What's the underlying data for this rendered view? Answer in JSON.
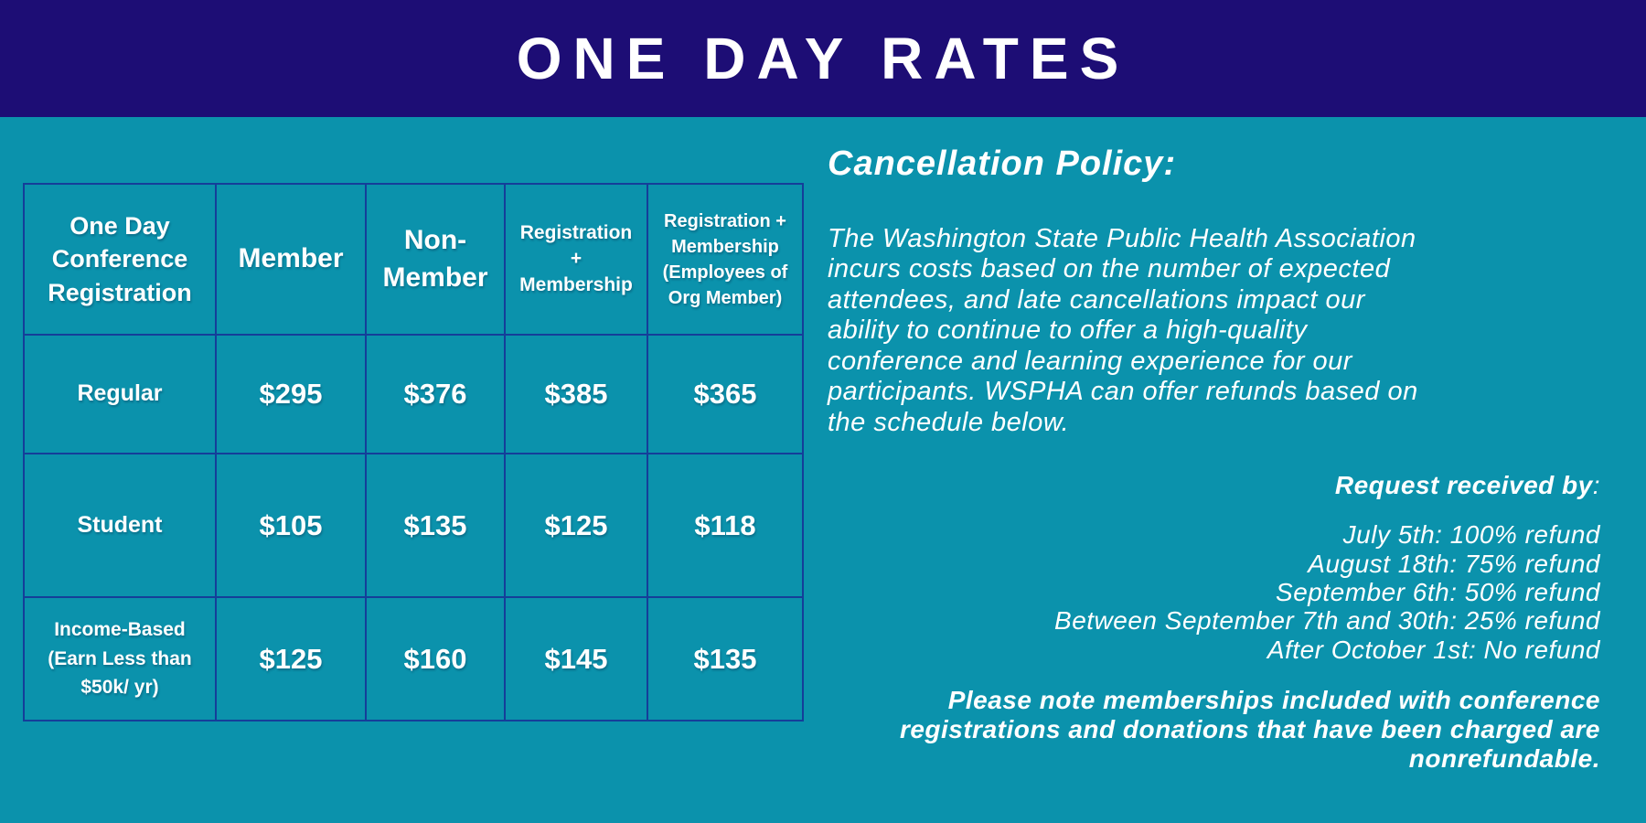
{
  "colors": {
    "header_background": "#1d0d75",
    "page_background": "#0b92ac",
    "table_border": "#153e99",
    "text": "#ffffff"
  },
  "header": {
    "title": "ONE DAY RATES"
  },
  "table": {
    "columns": [
      "One Day Conference Registration",
      "Member",
      "Non-Member",
      "Registration + Membership",
      "Registration + Membership (Employees of Org Member)"
    ],
    "rows": [
      {
        "label": "Regular",
        "values": [
          "$295",
          "$376",
          "$385",
          "$365"
        ]
      },
      {
        "label": "Student",
        "values": [
          "$105",
          "$135",
          "$125",
          "$118"
        ]
      },
      {
        "label": "Income-Based (Earn Less than $50k/ yr)",
        "values": [
          "$125",
          "$160",
          "$145",
          "$135"
        ]
      }
    ]
  },
  "policy": {
    "heading": "Cancellation Policy:",
    "body": "The Washington State Public Health Association\nincurs costs based on the number of expected\nattendees, and late cancellations impact our\nability to continue to offer a high-quality\nconference and learning experience for our\nparticipants. WSPHA can offer refunds based on\nthe schedule below.",
    "request_label": "Request received by",
    "request_colon": ":",
    "schedule": [
      "July 5th: 100% refund",
      "August 18th: 75% refund",
      "September 6th: 50% refund",
      "Between September 7th and 30th: 25% refund",
      "After October 1st: No refund"
    ],
    "note": "Please note memberships included with conference\nregistrations and donations that have been charged are\nnonrefundable."
  }
}
